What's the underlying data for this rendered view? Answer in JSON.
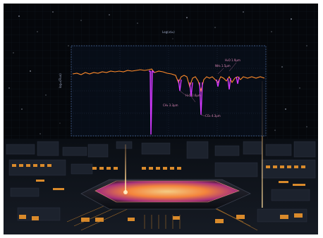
{
  "scene": {
    "labels": {
      "top_axis": "Log(ν/ν₀)",
      "left_axis": "log₁₀(Flux)",
      "ann_1": "H₂O 2.6μm",
      "ann_2": "CH₄ 3.3μm",
      "ann_3": "CO₂ 4.3μm",
      "ann_4": "NH₃ 1.5μm",
      "ann_5": "H₂O 1.9μm"
    },
    "colors": {
      "background": "#05070b",
      "board": "#0e1218",
      "chip_glow": "#ff9a3a",
      "spectrum_orange": "#ff8a2a",
      "spectrum_magenta": "#d238ff",
      "grid": "#2a3954"
    }
  }
}
